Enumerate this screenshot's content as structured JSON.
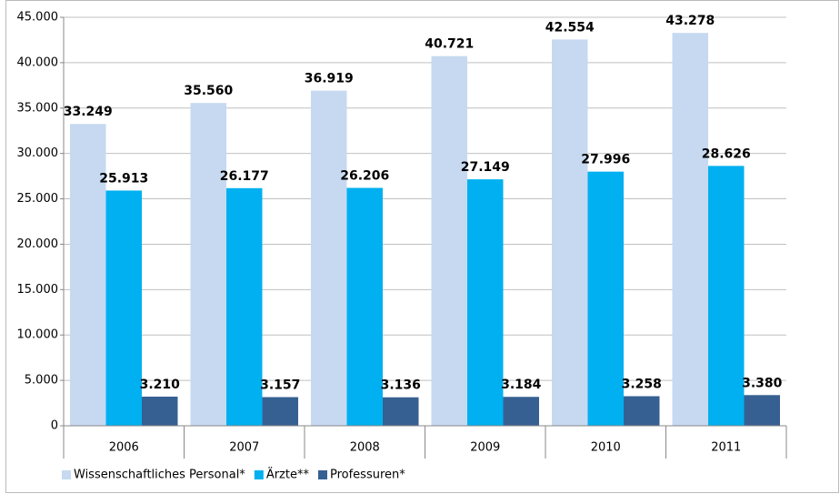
{
  "chart_data": {
    "type": "bar",
    "categories": [
      "2006",
      "2007",
      "2008",
      "2009",
      "2010",
      "2011"
    ],
    "series": [
      {
        "name": "Wissenschaftliches Personal*",
        "color": "#c6d9f1",
        "values": [
          33249,
          35560,
          36919,
          40721,
          42554,
          43278
        ],
        "value_labels": [
          "33.249",
          "35.560",
          "36.919",
          "40.721",
          "42.554",
          "43.278"
        ]
      },
      {
        "name": "Ärzte**",
        "color": "#00b0f0",
        "values": [
          25913,
          26177,
          26206,
          27149,
          27996,
          28626
        ],
        "value_labels": [
          "25.913",
          "26.177",
          "26.206",
          "27.149",
          "27.996",
          "28.626"
        ]
      },
      {
        "name": "Professuren*",
        "color": "#376092",
        "values": [
          3210,
          3157,
          3136,
          3184,
          3258,
          3380
        ],
        "value_labels": [
          "3.210",
          "3.157",
          "3.136",
          "3.184",
          "3.258",
          "3.380"
        ]
      }
    ],
    "ylim": [
      0,
      45000
    ],
    "yticks": [
      0,
      {
        "value": 5000,
        "label": "5.000"
      },
      {
        "value": 10000,
        "label": "10.000"
      },
      {
        "value": 15000,
        "label": "15.000"
      },
      {
        "value": 20000,
        "label": "20.000"
      },
      {
        "value": 25000,
        "label": "25.000"
      },
      {
        "value": 30000,
        "label": "30.000"
      },
      {
        "value": 35000,
        "label": "35.000"
      },
      {
        "value": 40000,
        "label": "40.000"
      },
      {
        "value": 45000,
        "label": "45.000"
      }
    ],
    "grid": true,
    "legend": "bottom"
  }
}
